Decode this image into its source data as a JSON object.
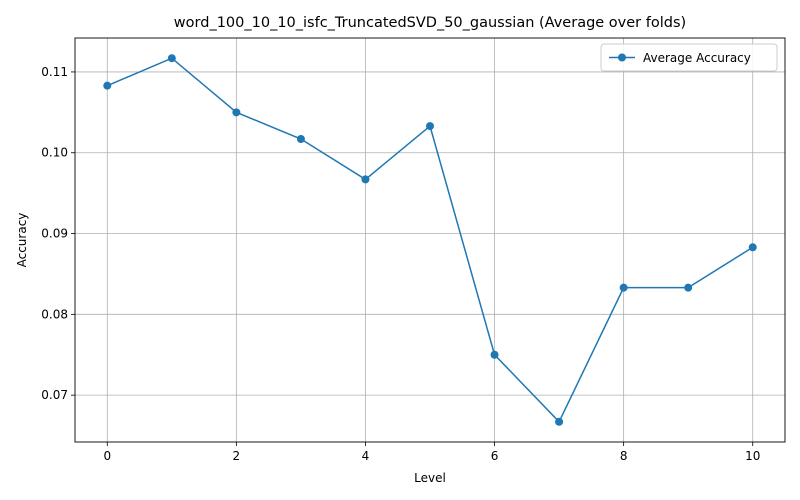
{
  "chart_data": {
    "type": "line",
    "title": "word_100_10_10_isfc_TruncatedSVD_50_gaussian (Average over folds)",
    "xlabel": "Level",
    "ylabel": "Accuracy",
    "xlim": [
      -0.5,
      10.5
    ],
    "ylim": [
      0.0642,
      0.1142
    ],
    "xticks": [
      0,
      2,
      4,
      6,
      8,
      10
    ],
    "xtick_labels": [
      "0",
      "2",
      "4",
      "6",
      "8",
      "10"
    ],
    "yticks": [
      0.07,
      0.08,
      0.09,
      0.1,
      0.11
    ],
    "ytick_labels": [
      "0.07",
      "0.08",
      "0.09",
      "0.10",
      "0.11"
    ],
    "grid": true,
    "legend_position": "top-right",
    "series": [
      {
        "name": "Average Accuracy",
        "color": "#1f77b4",
        "marker": "circle",
        "x": [
          0,
          1,
          2,
          3,
          4,
          5,
          6,
          7,
          8,
          9,
          10
        ],
        "y": [
          0.1083,
          0.1117,
          0.105,
          0.1017,
          0.0967,
          0.1033,
          0.075,
          0.0667,
          0.0833,
          0.0833,
          0.0883
        ]
      }
    ]
  }
}
